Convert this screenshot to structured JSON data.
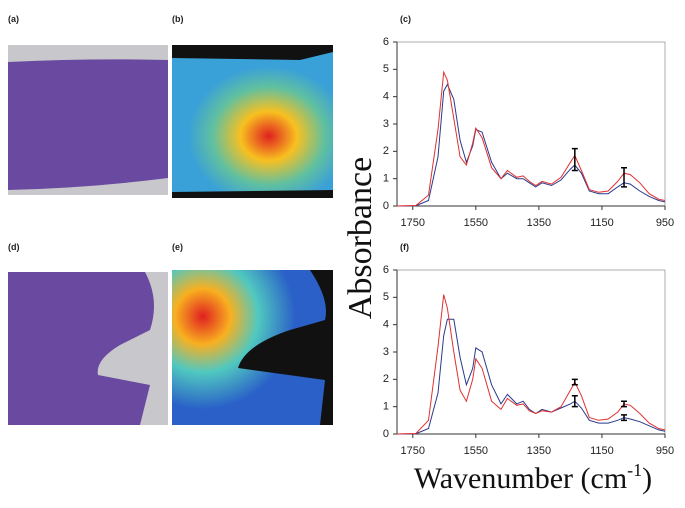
{
  "panel_labels": [
    "(a)",
    "(b)",
    "(d)",
    "(e)"
  ],
  "axis_labels": {
    "y": "Absorbance",
    "x": "Wavenumber (cm",
    "x_sup": "-1",
    "x_end": ")"
  },
  "chart_data": [
    {
      "type": "line",
      "panel": "(c)",
      "x": [
        1800,
        1740,
        1700,
        1670,
        1652,
        1640,
        1620,
        1600,
        1580,
        1560,
        1550,
        1530,
        1500,
        1470,
        1450,
        1420,
        1400,
        1380,
        1360,
        1340,
        1310,
        1280,
        1250,
        1236,
        1215,
        1190,
        1160,
        1130,
        1100,
        1080,
        1060,
        1030,
        1000,
        970,
        950
      ],
      "series": [
        {
          "color": "#e03030",
          "values": [
            0,
            0.02,
            0.4,
            2.8,
            4.9,
            4.6,
            3.2,
            1.8,
            1.5,
            2.3,
            2.85,
            2.5,
            1.4,
            1.0,
            1.3,
            1.05,
            1.1,
            0.9,
            0.75,
            0.9,
            0.8,
            1.05,
            1.6,
            1.85,
            1.3,
            0.6,
            0.5,
            0.55,
            0.9,
            1.2,
            1.15,
            0.85,
            0.45,
            0.25,
            0.2
          ]
        },
        {
          "color": "#2a3a8c",
          "values": [
            0,
            0.01,
            0.2,
            1.8,
            4.2,
            4.45,
            3.9,
            2.4,
            1.6,
            2.2,
            2.8,
            2.7,
            1.6,
            1.0,
            1.2,
            1.0,
            1.0,
            0.85,
            0.7,
            0.85,
            0.75,
            0.95,
            1.35,
            1.5,
            1.2,
            0.55,
            0.45,
            0.45,
            0.7,
            0.85,
            0.8,
            0.55,
            0.35,
            0.2,
            0.15
          ]
        }
      ],
      "error_bars": [
        {
          "x": 1236,
          "value": 1.7,
          "error": 0.4
        },
        {
          "x": 1080,
          "value": 1.05,
          "error": 0.35
        }
      ],
      "xlim": [
        1800,
        950
      ],
      "xticks": [
        1750,
        1550,
        1350,
        1150,
        950
      ],
      "ylim": [
        0,
        6
      ],
      "yticks": [
        0,
        1,
        2,
        3,
        4,
        5,
        6
      ]
    },
    {
      "type": "line",
      "panel": "(f)",
      "x": [
        1800,
        1740,
        1700,
        1670,
        1652,
        1640,
        1620,
        1600,
        1580,
        1560,
        1550,
        1530,
        1500,
        1470,
        1450,
        1420,
        1400,
        1380,
        1360,
        1340,
        1310,
        1280,
        1250,
        1236,
        1215,
        1190,
        1160,
        1130,
        1100,
        1080,
        1060,
        1030,
        1000,
        970,
        950
      ],
      "series": [
        {
          "color": "#e03030",
          "values": [
            0,
            0.02,
            0.5,
            3.2,
            5.1,
            4.6,
            3.0,
            1.6,
            1.2,
            2.0,
            2.75,
            2.4,
            1.2,
            0.9,
            1.3,
            1.05,
            1.1,
            0.85,
            0.75,
            0.85,
            0.8,
            1.0,
            1.6,
            1.9,
            1.4,
            0.6,
            0.5,
            0.55,
            0.8,
            1.1,
            1.05,
            0.75,
            0.4,
            0.2,
            0.15
          ]
        },
        {
          "color": "#2a3a8c",
          "values": [
            0,
            0.01,
            0.2,
            1.5,
            3.6,
            4.2,
            4.2,
            2.8,
            1.8,
            2.4,
            3.15,
            3.0,
            1.8,
            1.1,
            1.45,
            1.1,
            1.2,
            0.9,
            0.75,
            0.9,
            0.8,
            0.95,
            1.1,
            1.2,
            0.95,
            0.5,
            0.4,
            0.4,
            0.5,
            0.6,
            0.55,
            0.45,
            0.3,
            0.15,
            0.1
          ]
        }
      ],
      "error_bars": [
        {
          "x": 1236,
          "value": 1.9,
          "error": 0.1
        },
        {
          "x": 1236,
          "value": 1.2,
          "error": 0.2
        },
        {
          "x": 1080,
          "value": 1.1,
          "error": 0.1
        },
        {
          "x": 1080,
          "value": 0.6,
          "error": 0.1
        }
      ],
      "xlim": [
        1800,
        950
      ],
      "xticks": [
        1750,
        1550,
        1350,
        1150,
        950
      ],
      "ylim": [
        0,
        6
      ],
      "yticks": [
        0,
        1,
        2,
        3,
        4,
        5,
        6
      ]
    }
  ]
}
